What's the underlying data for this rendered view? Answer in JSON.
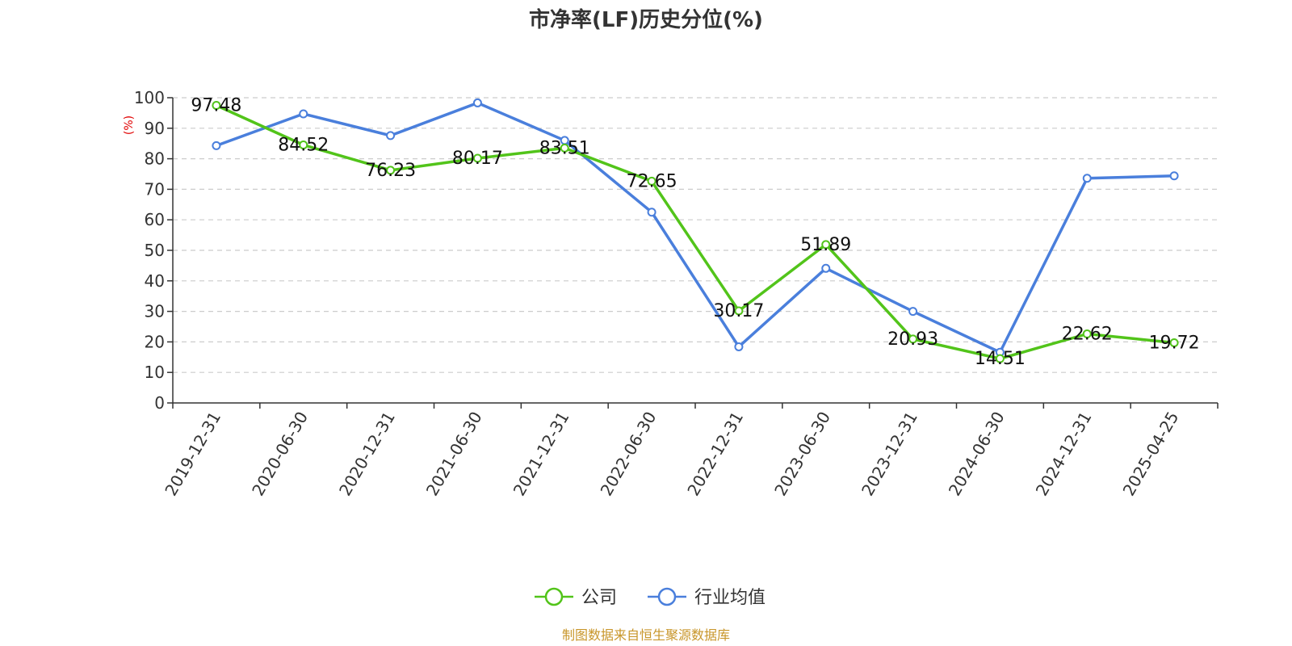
{
  "chart_data": {
    "type": "line",
    "title": "市净率(LF)历史分位(%)",
    "ylabel": "(%)",
    "ylim": [
      0,
      100
    ],
    "yticks": [
      0,
      10,
      20,
      30,
      40,
      50,
      60,
      70,
      80,
      90,
      100
    ],
    "categories": [
      "2019-12-31",
      "2020-06-30",
      "2020-12-31",
      "2021-06-30",
      "2021-12-31",
      "2022-06-30",
      "2022-12-31",
      "2023-06-30",
      "2023-12-31",
      "2024-06-30",
      "2024-12-31",
      "2025-04-25"
    ],
    "series": [
      {
        "name": "公司",
        "color": "#52c41a",
        "values": [
          97.48,
          84.52,
          76.23,
          80.17,
          83.51,
          72.65,
          30.17,
          51.89,
          20.93,
          14.51,
          22.62,
          19.72
        ],
        "labeled": true
      },
      {
        "name": "行业均值",
        "color": "#4a7fdc",
        "values": [
          84.3,
          94.7,
          87.6,
          98.3,
          86.0,
          62.5,
          18.4,
          44.1,
          30.0,
          16.6,
          73.6,
          74.4
        ],
        "labeled": false
      }
    ],
    "grid": "dashed horizontal",
    "legend_position": "bottom-center"
  },
  "source": "制图数据来自恒生聚源数据库"
}
